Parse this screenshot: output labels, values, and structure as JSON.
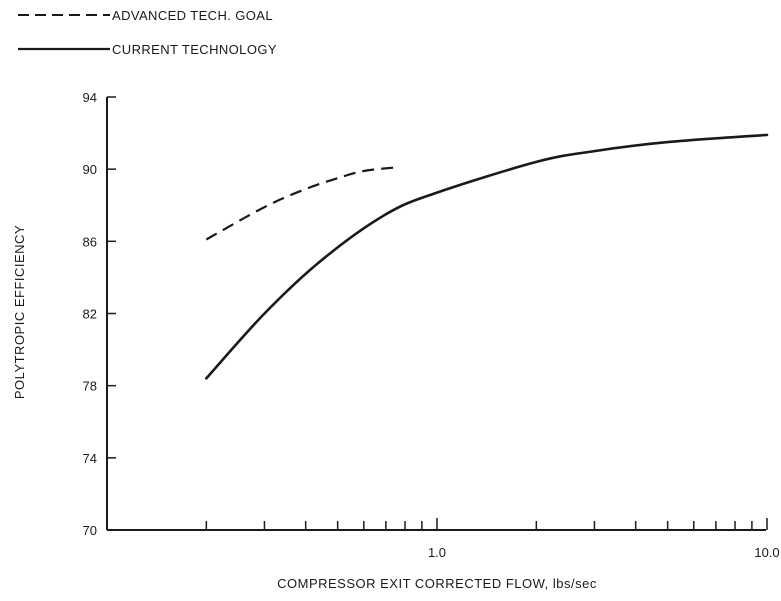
{
  "chart_data": {
    "type": "line",
    "xlabel": "COMPRESSOR EXIT CORRECTED FLOW, lbs/sec",
    "ylabel": "POLYTROPIC EFFICIENCY",
    "x_scale": "log",
    "xlim": [
      0.1,
      10.0
    ],
    "ylim": [
      70,
      94
    ],
    "x_tick_labels": [
      "1.0",
      "10.0"
    ],
    "x_tick_values": [
      0.2,
      0.3,
      0.4,
      0.5,
      0.6,
      0.7,
      0.8,
      0.9,
      1.0,
      2,
      3,
      4,
      5,
      6,
      7,
      8,
      9,
      10
    ],
    "y_ticks": [
      70,
      74,
      78,
      82,
      86,
      90,
      94
    ],
    "grid": false,
    "legend_position": "top-left",
    "series": [
      {
        "name": "ADVANCED TECH. GOAL",
        "style": "dashed",
        "color": "#1a1a1a",
        "x": [
          0.2,
          0.3,
          0.4,
          0.5,
          0.6,
          0.75
        ],
        "y": [
          86.1,
          87.9,
          88.9,
          89.5,
          89.9,
          90.1
        ]
      },
      {
        "name": "CURRENT TECHNOLOGY",
        "style": "solid",
        "color": "#1a1a1a",
        "x": [
          0.2,
          0.3,
          0.45,
          0.7,
          1.0,
          2.0,
          3.0,
          5.0,
          10.0
        ],
        "y": [
          78.4,
          82.0,
          85.0,
          87.5,
          88.7,
          90.4,
          91.0,
          91.5,
          91.9
        ]
      }
    ]
  }
}
